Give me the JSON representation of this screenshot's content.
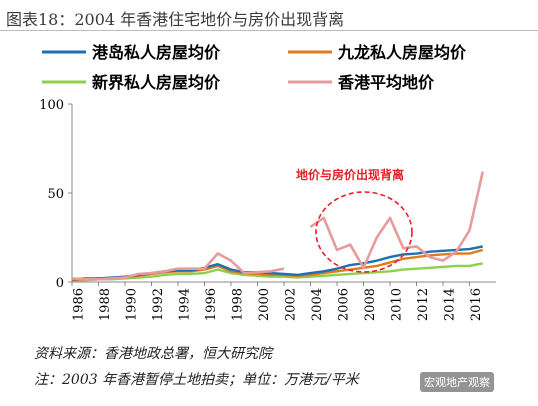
{
  "title": "图表18：2004 年香港住宅地价与房价出现背离",
  "chart_data": {
    "type": "line",
    "x": [
      1986,
      1987,
      1988,
      1989,
      1990,
      1991,
      1992,
      1993,
      1994,
      1995,
      1996,
      1997,
      1998,
      1999,
      2000,
      2001,
      2002,
      2003,
      2004,
      2005,
      2006,
      2007,
      2008,
      2009,
      2010,
      2011,
      2012,
      2013,
      2014,
      2015,
      2016,
      2017
    ],
    "xticks": [
      "1986",
      "1988",
      "1990",
      "1992",
      "1994",
      "1996",
      "1998",
      "2000",
      "2002",
      "2004",
      "2006",
      "2008",
      "2010",
      "2012",
      "2014",
      "2016"
    ],
    "yticks": [
      "0",
      "50",
      "100"
    ],
    "ylim": [
      0,
      100
    ],
    "series": [
      {
        "name": "港岛私人房屋均价",
        "color": "#1f6fb4",
        "values": [
          1.5,
          2,
          2,
          2.5,
          3,
          4,
          5,
          6,
          6.5,
          6.5,
          8,
          10,
          7,
          5.5,
          5.5,
          5,
          4.5,
          4,
          5,
          6,
          7.5,
          9.5,
          10.5,
          12,
          14,
          15.5,
          16,
          17,
          17.5,
          18,
          18.5,
          20
        ]
      },
      {
        "name": "九龙私人房屋均价",
        "color": "#e07a1f",
        "values": [
          1,
          1.5,
          2,
          2,
          2.5,
          3.5,
          4.5,
          5.5,
          6,
          6,
          7,
          9,
          6,
          5,
          4.5,
          4,
          4,
          3.5,
          4,
          5,
          6,
          7,
          8,
          9,
          11,
          13,
          14,
          15,
          15.5,
          16,
          16,
          18
        ]
      },
      {
        "name": "新界私人房屋均价",
        "color": "#8fd14f",
        "values": [
          1,
          1,
          1.5,
          1.5,
          2,
          2.5,
          3,
          4,
          4.5,
          4.5,
          5,
          7,
          5,
          4,
          3.5,
          3,
          3,
          2.5,
          3,
          3.5,
          4,
          4.5,
          5,
          5.5,
          6,
          7,
          7.5,
          8,
          8.5,
          9,
          9,
          10.5
        ]
      },
      {
        "name": "香港平均地价",
        "color": "#e79b9b",
        "values": [
          2,
          1.5,
          1.5,
          2,
          2.5,
          4.5,
          5,
          6,
          7.5,
          7.5,
          7.5,
          16,
          12,
          5,
          5.5,
          6,
          7.5,
          null,
          31,
          36,
          18,
          21,
          8,
          25,
          36,
          19,
          20,
          14,
          12,
          17,
          29,
          62
        ]
      }
    ],
    "annotation": "地价与房价出现背离"
  },
  "source_note": "资料来源：香港地政总署，恒大研究院",
  "footnote": "注：2003 年香港暂停土地拍卖；单位：万港元/平米",
  "watermark": "宏观地产观察"
}
